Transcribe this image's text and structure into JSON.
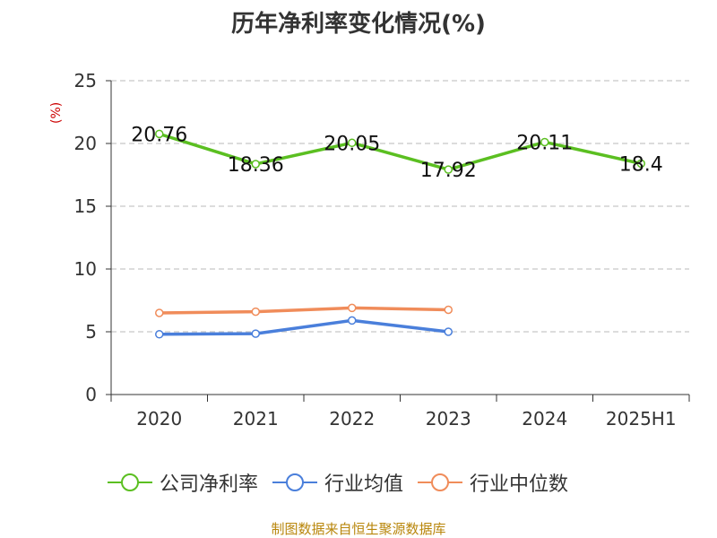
{
  "chart_data": {
    "type": "line",
    "title": "历年净利率变化情况(%)",
    "y_unit": "(%)",
    "categories": [
      "2020",
      "2021",
      "2022",
      "2023",
      "2024",
      "2025H1"
    ],
    "ylim": [
      0,
      25
    ],
    "yticks": [
      0,
      5,
      10,
      15,
      20,
      25
    ],
    "grid": true,
    "legend_position": "bottom",
    "series": [
      {
        "name": "公司净利率",
        "color": "#5bbf21",
        "values": [
          20.76,
          18.36,
          20.05,
          17.92,
          20.11,
          18.4
        ],
        "labels": [
          "20.76",
          "18.36",
          "20.05",
          "17.92",
          "20.11",
          "18.4"
        ]
      },
      {
        "name": "行业均值",
        "color": "#4a7fdb",
        "values": [
          4.8,
          4.85,
          5.9,
          5.0,
          null,
          null
        ]
      },
      {
        "name": "行业中位数",
        "color": "#f08c5a",
        "values": [
          6.5,
          6.6,
          6.9,
          6.75,
          null,
          null
        ]
      }
    ]
  },
  "source": "制图数据来自恒生聚源数据库"
}
